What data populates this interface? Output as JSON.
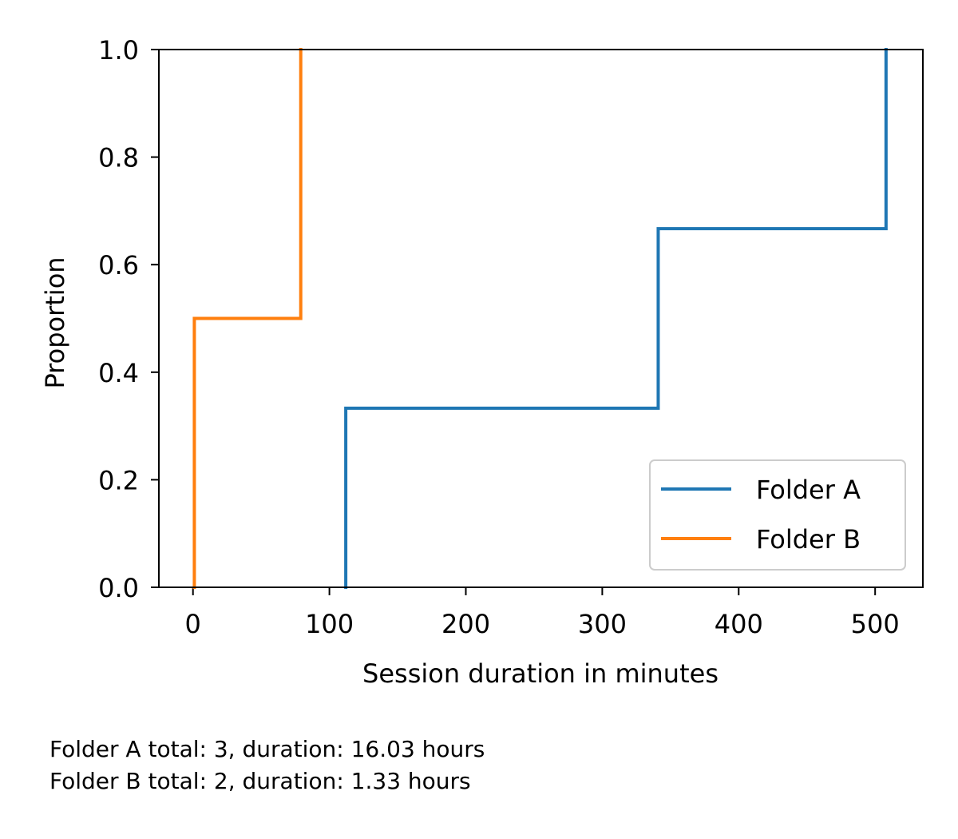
{
  "chart_data": {
    "type": "line",
    "subtype": "ecdf-step",
    "xlabel": "Session duration in minutes",
    "ylabel": "Proportion",
    "xlim": [
      -25,
      535
    ],
    "ylim": [
      0,
      1
    ],
    "xticks": [
      0,
      100,
      200,
      300,
      400,
      500
    ],
    "yticks": [
      0.0,
      0.2,
      0.4,
      0.6,
      0.8,
      1.0
    ],
    "ytick_labels": [
      "0.0",
      "0.2",
      "0.4",
      "0.6",
      "0.8",
      "1.0"
    ],
    "grid": false,
    "legend_position": "lower-right",
    "series": [
      {
        "name": "Folder A",
        "color": "#1f77b4",
        "x": [
          112,
          341,
          508
        ],
        "y": [
          0.333,
          0.667,
          1.0
        ]
      },
      {
        "name": "Folder B",
        "color": "#ff7f0e",
        "x": [
          1,
          79
        ],
        "y": [
          0.5,
          1.0
        ]
      }
    ]
  },
  "footer": {
    "line1": "Folder A total: 3, duration: 16.03 hours",
    "line2": "Folder B total: 2, duration: 1.33 hours"
  }
}
